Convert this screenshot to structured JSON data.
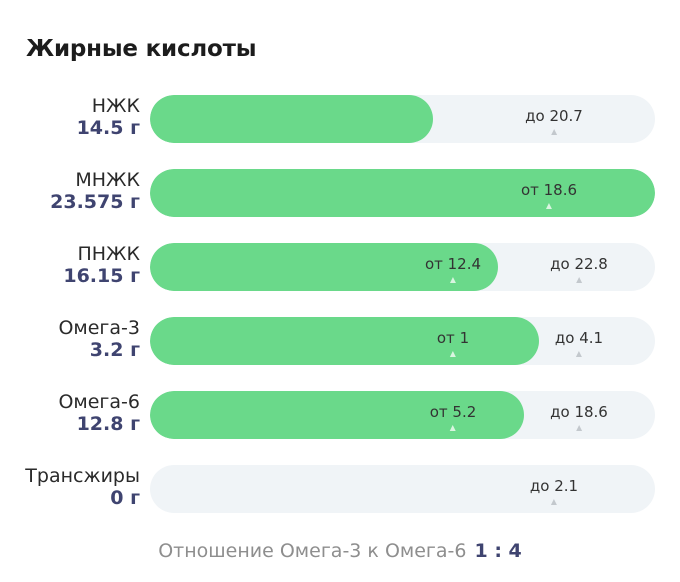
{
  "title": "Жирные кислоты",
  "rows": [
    {
      "name": "НЖК",
      "value": "14.5 г",
      "fill_fraction": 0.56,
      "marks": [
        {
          "text": "до 20.7",
          "pos": 0.8,
          "on_green": false
        }
      ]
    },
    {
      "name": "МНЖК",
      "value": "23.575 г",
      "fill_fraction": 1.0,
      "marks": [
        {
          "text": "от 18.6",
          "pos": 0.79,
          "on_green": true
        }
      ]
    },
    {
      "name": "ПНЖК",
      "value": "16.15 г",
      "fill_fraction": 0.69,
      "marks": [
        {
          "text": "от 12.4",
          "pos": 0.6,
          "on_green": true
        },
        {
          "text": "до 22.8",
          "pos": 0.85,
          "on_green": false
        }
      ]
    },
    {
      "name": "Омега-3",
      "value": "3.2 г",
      "fill_fraction": 0.77,
      "marks": [
        {
          "text": "от 1",
          "pos": 0.6,
          "on_green": true
        },
        {
          "text": "до 4.1",
          "pos": 0.85,
          "on_green": false
        }
      ]
    },
    {
      "name": "Омега-6",
      "value": "12.8 г",
      "fill_fraction": 0.74,
      "marks": [
        {
          "text": "от 5.2",
          "pos": 0.6,
          "on_green": true
        },
        {
          "text": "до 18.6",
          "pos": 0.85,
          "on_green": false
        }
      ]
    },
    {
      "name": "Трансжиры",
      "value": "0 г",
      "fill_fraction": 0.0,
      "marks": [
        {
          "text": "до 2.1",
          "pos": 0.8,
          "on_green": false
        }
      ]
    }
  ],
  "footer": {
    "text": "Отношение Омега-3 к Омега-6",
    "ratio": "1 : 4"
  },
  "colors": {
    "fill": "#6ad98a",
    "track": "#f0f4f7",
    "value": "#3f4470"
  }
}
